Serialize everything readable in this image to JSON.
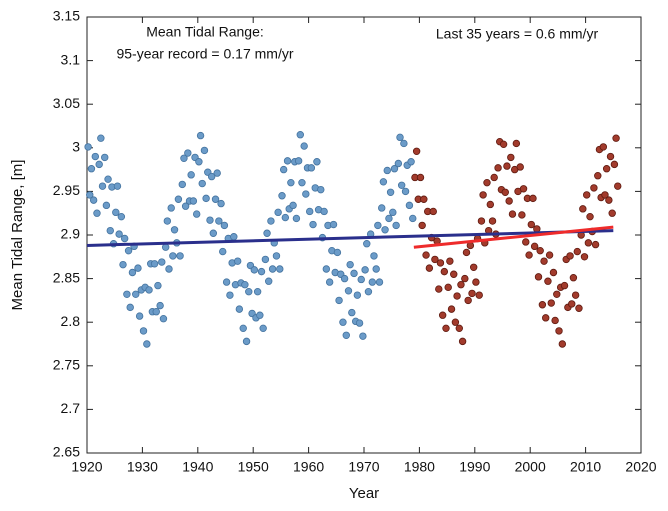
{
  "chart_data": {
    "type": "scatter",
    "xlabel": "Year",
    "ylabel": "Mean Tidal Range, [m]",
    "annotations": [
      "Mean Tidal Range:",
      "95-year record = 0.17 mm/yr",
      "Last 35 years = 0.6 mm/yr"
    ],
    "xlim": [
      1920,
      2020
    ],
    "ylim": [
      2.65,
      3.15
    ],
    "xticks": [
      1920,
      1930,
      1940,
      1950,
      1960,
      1970,
      1980,
      1990,
      2000,
      2010,
      2020
    ],
    "yticks": [
      2.65,
      2.7,
      2.75,
      2.8,
      2.85,
      2.9,
      2.95,
      3,
      3.05,
      3.1,
      3.15
    ],
    "grid": false,
    "series": [
      {
        "mode": "markers",
        "color": "#6b9bc8",
        "edgecolor": "#44739f",
        "x": [
          1920.2,
          1920.5,
          1920.8,
          1921.2,
          1921.5,
          1921.8,
          1922.2,
          1922.5,
          1922.8,
          1923.2,
          1923.5,
          1923.8,
          1924.2,
          1924.5,
          1924.8,
          1925.2,
          1925.5,
          1925.8,
          1926.2,
          1926.5,
          1926.8,
          1927.2,
          1927.5,
          1927.8,
          1928.2,
          1928.5,
          1928.8,
          1929.2,
          1929.5,
          1929.8,
          1930.2,
          1930.5,
          1930.8,
          1931.2,
          1931.5,
          1931.8,
          1932.2,
          1932.5,
          1932.8,
          1933.2,
          1933.5,
          1933.8,
          1934.2,
          1934.5,
          1934.8,
          1935.2,
          1935.5,
          1935.8,
          1936.2,
          1936.5,
          1936.8,
          1937.2,
          1937.5,
          1937.8,
          1938.2,
          1938.5,
          1938.8,
          1939.2,
          1939.5,
          1939.8,
          1940.2,
          1940.5,
          1940.8,
          1941.2,
          1941.5,
          1941.8,
          1942.2,
          1942.5,
          1942.8,
          1943.2,
          1943.5,
          1943.8,
          1944.2,
          1944.5,
          1944.8,
          1945.2,
          1945.5,
          1945.8,
          1946.2,
          1946.5,
          1946.8,
          1947.2,
          1947.5,
          1947.8,
          1948.2,
          1948.5,
          1948.8,
          1949.2,
          1949.5,
          1949.8,
          1950.2,
          1950.5,
          1950.8,
          1951.2,
          1951.5,
          1951.8,
          1952.2,
          1952.5,
          1952.8,
          1953.2,
          1953.5,
          1953.8,
          1954.2,
          1954.5,
          1954.8,
          1955.2,
          1955.5,
          1955.8,
          1956.2,
          1956.5,
          1956.8,
          1957.2,
          1957.5,
          1957.8,
          1958.2,
          1958.5,
          1958.8,
          1959.2,
          1959.5,
          1959.8,
          1960.2,
          1960.5,
          1960.8,
          1961.2,
          1961.5,
          1961.8,
          1962.2,
          1962.5,
          1962.8,
          1963.2,
          1963.5,
          1963.8,
          1964.2,
          1964.5,
          1964.8,
          1965.2,
          1965.5,
          1965.8,
          1966.2,
          1966.5,
          1966.8,
          1967.2,
          1967.5,
          1967.8,
          1968.2,
          1968.5,
          1968.8,
          1969.2,
          1969.5,
          1969.8,
          1970.2,
          1970.5,
          1970.8,
          1971.2,
          1971.5,
          1971.8,
          1972.2,
          1972.5,
          1972.8,
          1973.2,
          1973.5,
          1973.8,
          1974.2,
          1974.5,
          1974.8,
          1975.2,
          1975.5,
          1975.8,
          1976.2,
          1976.5,
          1976.8,
          1977.2,
          1977.5,
          1977.8,
          1978.2,
          1978.5,
          1978.8
        ],
        "values": [
          3.001,
          2.946,
          2.976,
          2.94,
          2.99,
          2.925,
          2.981,
          3.011,
          2.956,
          2.989,
          2.934,
          2.964,
          2.905,
          2.955,
          2.89,
          2.926,
          2.956,
          2.901,
          2.921,
          2.866,
          2.896,
          2.832,
          2.882,
          2.817,
          2.857,
          2.887,
          2.832,
          2.862,
          2.807,
          2.837,
          2.79,
          2.84,
          2.775,
          2.837,
          2.867,
          2.812,
          2.867,
          2.812,
          2.842,
          2.819,
          2.869,
          2.804,
          2.886,
          2.916,
          2.861,
          2.931,
          2.876,
          2.906,
          2.891,
          2.941,
          2.876,
          2.958,
          2.988,
          2.933,
          2.994,
          2.939,
          2.969,
          2.939,
          2.989,
          2.924,
          2.984,
          3.014,
          2.959,
          2.997,
          2.942,
          2.972,
          2.917,
          2.967,
          2.902,
          2.941,
          2.971,
          2.916,
          2.936,
          2.881,
          2.911,
          2.846,
          2.896,
          2.831,
          2.868,
          2.898,
          2.843,
          2.87,
          2.815,
          2.845,
          2.793,
          2.843,
          2.778,
          2.835,
          2.865,
          2.81,
          2.86,
          2.805,
          2.835,
          2.808,
          2.858,
          2.793,
          2.872,
          2.902,
          2.847,
          2.916,
          2.861,
          2.891,
          2.876,
          2.926,
          2.861,
          2.945,
          2.975,
          2.92,
          2.985,
          2.93,
          2.96,
          2.934,
          2.984,
          2.919,
          2.985,
          3.015,
          2.96,
          3.002,
          2.947,
          2.977,
          2.927,
          2.977,
          2.912,
          2.954,
          2.984,
          2.929,
          2.952,
          2.897,
          2.927,
          2.861,
          2.911,
          2.846,
          2.882,
          2.912,
          2.857,
          2.88,
          2.825,
          2.855,
          2.8,
          2.85,
          2.785,
          2.836,
          2.866,
          2.811,
          2.856,
          2.801,
          2.831,
          2.799,
          2.849,
          2.784,
          2.86,
          2.89,
          2.835,
          2.901,
          2.846,
          2.876,
          2.861,
          2.911,
          2.846,
          2.931,
          2.961,
          2.906,
          2.974,
          2.919,
          2.949,
          2.926,
          2.976,
          2.911,
          2.982,
          3.012,
          2.957,
          3.005,
          2.95,
          2.98,
          2.934,
          2.984,
          2.919
        ]
      },
      {
        "mode": "markers",
        "color": "#a23b2c",
        "edgecolor": "#5e1a10",
        "x": [
          1979.2,
          1979.5,
          1979.8,
          1980.2,
          1980.5,
          1980.8,
          1981.2,
          1981.5,
          1981.8,
          1982.2,
          1982.5,
          1982.8,
          1983.2,
          1983.5,
          1983.8,
          1984.2,
          1984.5,
          1984.8,
          1985.2,
          1985.5,
          1985.8,
          1986.2,
          1986.5,
          1986.8,
          1987.2,
          1987.5,
          1987.8,
          1988.2,
          1988.5,
          1988.8,
          1989.2,
          1989.5,
          1989.8,
          1990.2,
          1990.5,
          1990.8,
          1991.2,
          1991.5,
          1991.8,
          1992.2,
          1992.5,
          1992.8,
          1993.2,
          1993.5,
          1993.8,
          1994.2,
          1994.5,
          1994.8,
          1995.2,
          1995.5,
          1995.8,
          1996.2,
          1996.5,
          1996.8,
          1997.2,
          1997.5,
          1997.8,
          1998.2,
          1998.5,
          1998.8,
          1999.2,
          1999.5,
          1999.8,
          2000.2,
          2000.5,
          2000.8,
          2001.2,
          2001.5,
          2001.8,
          2002.2,
          2002.5,
          2002.8,
          2003.2,
          2003.5,
          2003.8,
          2004.2,
          2004.5,
          2004.8,
          2005.2,
          2005.5,
          2005.8,
          2006.2,
          2006.5,
          2006.8,
          2007.2,
          2007.5,
          2007.8,
          2008.2,
          2008.5,
          2008.8,
          2009.2,
          2009.5,
          2009.8,
          2010.2,
          2010.5,
          2010.8,
          2011.2,
          2011.5,
          2011.8,
          2012.2,
          2012.5,
          2012.8,
          2013.2,
          2013.5,
          2013.8,
          2014.2,
          2014.5,
          2014.8,
          2015.2,
          2015.5,
          2015.8
        ],
        "values": [
          2.966,
          2.996,
          2.941,
          2.966,
          2.911,
          2.941,
          2.877,
          2.927,
          2.862,
          2.897,
          2.927,
          2.872,
          2.893,
          2.838,
          2.868,
          2.808,
          2.858,
          2.793,
          2.84,
          2.87,
          2.815,
          2.855,
          2.8,
          2.83,
          2.793,
          2.843,
          2.778,
          2.85,
          2.88,
          2.825,
          2.888,
          2.833,
          2.863,
          2.846,
          2.896,
          2.831,
          2.916,
          2.946,
          2.891,
          2.96,
          2.905,
          2.935,
          2.916,
          2.966,
          2.901,
          2.977,
          3.007,
          2.952,
          3.004,
          2.949,
          2.979,
          2.939,
          2.989,
          2.924,
          2.975,
          3.005,
          2.95,
          2.978,
          2.923,
          2.953,
          2.892,
          2.942,
          2.877,
          2.912,
          2.942,
          2.887,
          2.907,
          2.852,
          2.882,
          2.82,
          2.87,
          2.805,
          2.847,
          2.877,
          2.822,
          2.857,
          2.802,
          2.832,
          2.79,
          2.84,
          2.775,
          2.842,
          2.872,
          2.817,
          2.876,
          2.821,
          2.851,
          2.831,
          2.881,
          2.816,
          2.9,
          2.93,
          2.875,
          2.946,
          2.891,
          2.921,
          2.904,
          2.954,
          2.889,
          2.968,
          2.998,
          2.943,
          3.001,
          2.946,
          2.976,
          2.94,
          2.99,
          2.925,
          2.981,
          3.011,
          2.956
        ]
      },
      {
        "mode": "line",
        "color": "#2a2f8c",
        "x": [
          1920,
          2015
        ],
        "values": [
          2.888,
          2.905
        ]
      },
      {
        "mode": "line",
        "color": "#ee2b2b",
        "x": [
          1979,
          2015
        ],
        "values": [
          2.886,
          2.909
        ]
      }
    ]
  }
}
